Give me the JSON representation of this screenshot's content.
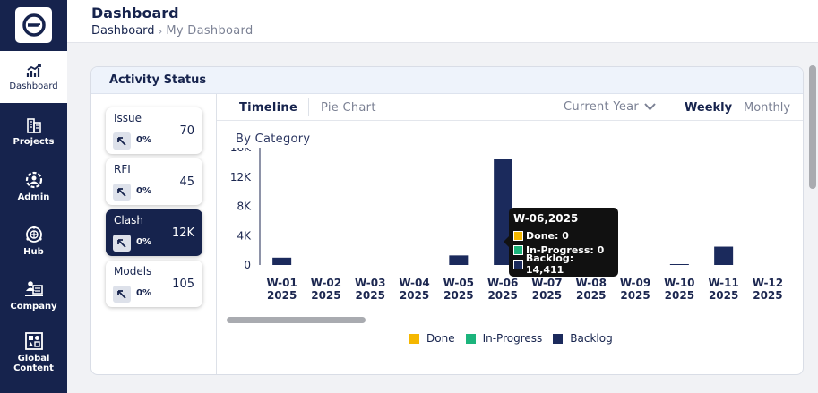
{
  "sidebar": {
    "items": [
      {
        "label": "Dashboard",
        "icon": "chart-trend-icon",
        "active": true
      },
      {
        "label": "Projects",
        "icon": "buildings-icon",
        "active": false
      },
      {
        "label": "Admin",
        "icon": "admin-gear-icon",
        "active": false
      },
      {
        "label": "Hub",
        "icon": "hub-globe-icon",
        "active": false
      },
      {
        "label": "Company",
        "icon": "company-icon",
        "active": false
      },
      {
        "label": "Global Content",
        "icon": "global-content-icon",
        "active": false
      }
    ]
  },
  "header": {
    "title": "Dashboard",
    "breadcrumb": {
      "root": "Dashboard",
      "current": "My Dashboard"
    }
  },
  "card": {
    "title": "Activity Status",
    "categories": [
      {
        "name": "Issue",
        "count": "70",
        "percent": "0%"
      },
      {
        "name": "RFI",
        "count": "45",
        "percent": "0%"
      },
      {
        "name": "Clash",
        "count": "12K",
        "percent": "0%",
        "active": true
      },
      {
        "name": "Models",
        "count": "105",
        "percent": "0%"
      }
    ],
    "tabs": {
      "timeline": "Timeline",
      "pie": "Pie Chart"
    },
    "year_filter": "Current Year",
    "periods": {
      "weekly": "Weekly",
      "monthly": "Monthly"
    },
    "subtitle": "By Category",
    "tooltip": {
      "title": "W-06,2025",
      "rows": [
        {
          "label": "Done: 0",
          "color": "#f5b700"
        },
        {
          "label": "In-Progress: 0",
          "color": "#1cb47c"
        },
        {
          "label": "Backlog: 14,411",
          "color": "#1b2a5c"
        }
      ]
    }
  },
  "chart_data": {
    "type": "bar",
    "categories": [
      "W-01 2025",
      "W-02 2025",
      "W-03 2025",
      "W-04 2025",
      "W-05 2025",
      "W-06 2025",
      "W-07 2025",
      "W-08 2025",
      "W-09 2025",
      "W-10 2025",
      "W-11 2025",
      "W-12 2025"
    ],
    "series": [
      {
        "name": "Done",
        "color": "#f5b700",
        "values": [
          0,
          0,
          0,
          0,
          0,
          0,
          0,
          0,
          0,
          0,
          0,
          0
        ]
      },
      {
        "name": "In-Progress",
        "color": "#1cb47c",
        "values": [
          0,
          0,
          0,
          0,
          0,
          0,
          0,
          0,
          0,
          0,
          0,
          0
        ]
      },
      {
        "name": "Backlog",
        "color": "#1b2a5c",
        "values": [
          1000,
          0,
          0,
          0,
          1300,
          14411,
          0,
          0,
          0,
          100,
          2500,
          0
        ]
      }
    ],
    "y_ticks": [
      "0",
      "4K",
      "8K",
      "12K",
      "16K"
    ],
    "ylim": [
      0,
      16000
    ],
    "legend_position": "bottom"
  }
}
